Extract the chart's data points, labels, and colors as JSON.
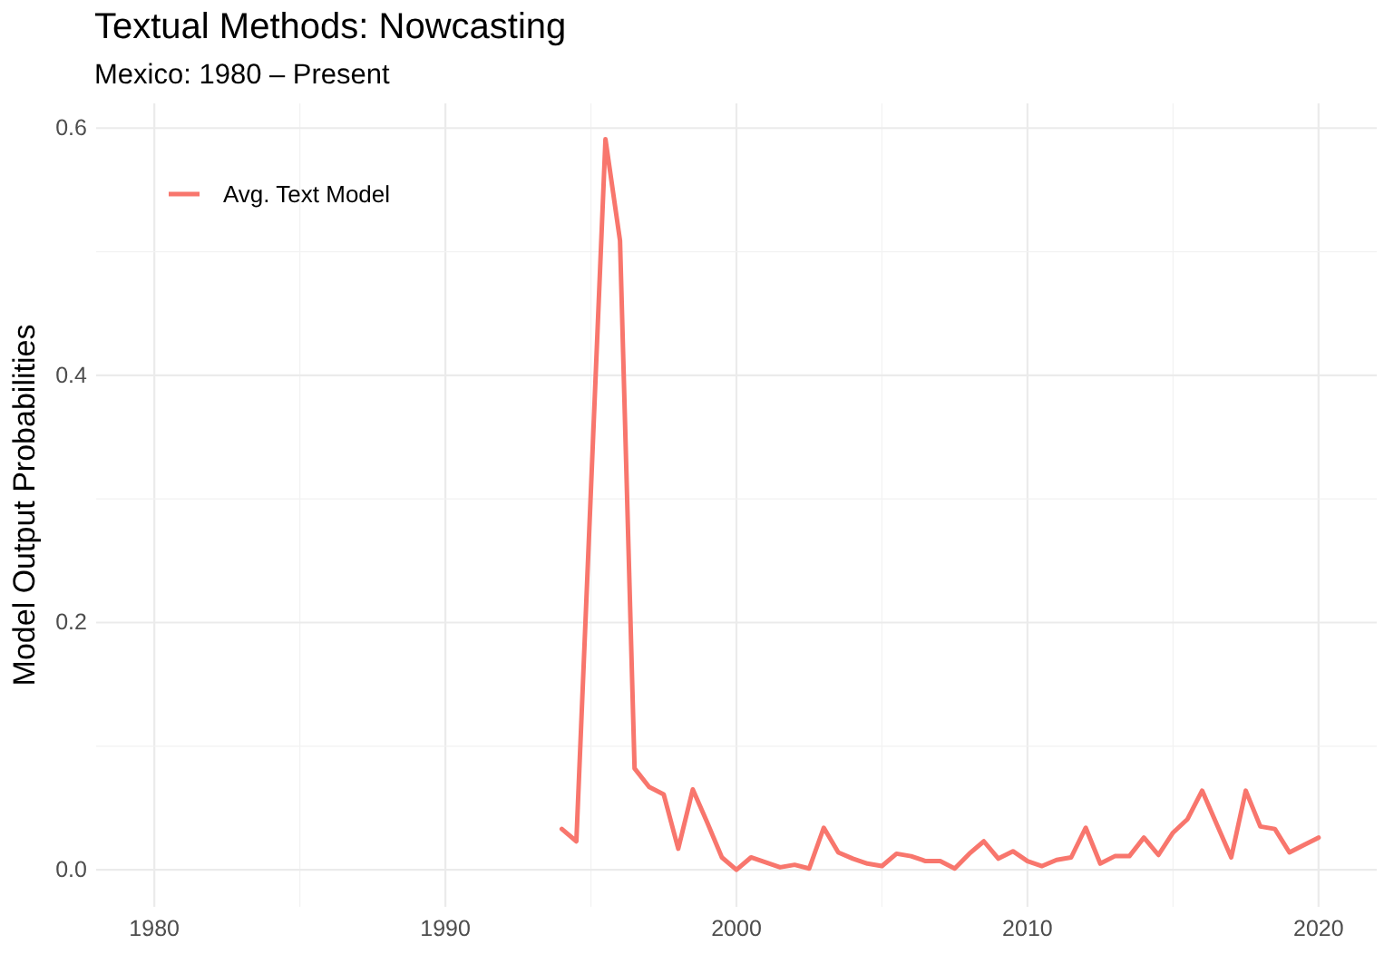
{
  "chart_data": {
    "type": "line",
    "title": "Textual Methods: Nowcasting",
    "subtitle": "Mexico: 1980 – Present",
    "ylabel": "Model Output Probabilities",
    "xlim": [
      1978,
      2022
    ],
    "xticks": [
      1980,
      1990,
      2000,
      2010,
      2020
    ],
    "ylim": [
      -0.03,
      0.62
    ],
    "yticks": [
      {
        "value": 0,
        "label": "0.0"
      },
      0.2,
      0.4,
      0.6
    ],
    "grid": true,
    "legend": "top left",
    "line_style": "solid",
    "series": [
      {
        "name": "Avg. Text Model",
        "color": "#f8766d",
        "x": [
          1994,
          1994.5,
          1995.5,
          1996,
          1996.5,
          1997,
          1997.5,
          1998,
          1998.5,
          1999,
          1999.5,
          2000,
          2000.5,
          2001,
          2001.5,
          2002,
          2002.5,
          2003,
          2003.5,
          2004,
          2004.5,
          2005,
          2005.5,
          2006,
          2006.5,
          2007,
          2007.5,
          2008,
          2008.5,
          2009,
          2009.5,
          2010,
          2010.5,
          2011,
          2011.5,
          2012,
          2012.5,
          2013,
          2013.5,
          2014,
          2014.5,
          2015,
          2015.5,
          2016,
          2016.5,
          2017,
          2017.5,
          2018,
          2018.5,
          2019,
          2019.5,
          2020
        ],
        "values": [
          0.033,
          0.023,
          0.591,
          0.509,
          0.082,
          0.067,
          0.061,
          0.017,
          0.065,
          0.038,
          0.01,
          0.0,
          0.01,
          0.006,
          0.002,
          0.004,
          0.001,
          0.034,
          0.014,
          0.009,
          0.005,
          0.003,
          0.013,
          0.011,
          0.007,
          0.007,
          0.001,
          0.013,
          0.023,
          0.009,
          0.015,
          0.007,
          0.003,
          0.008,
          0.01,
          0.034,
          0.005,
          0.011,
          0.011,
          0.026,
          0.012,
          0.03,
          0.041,
          0.064,
          0.037,
          0.01,
          0.064,
          0.035,
          0.033,
          0.014,
          0.02,
          0.026
        ]
      }
    ]
  }
}
